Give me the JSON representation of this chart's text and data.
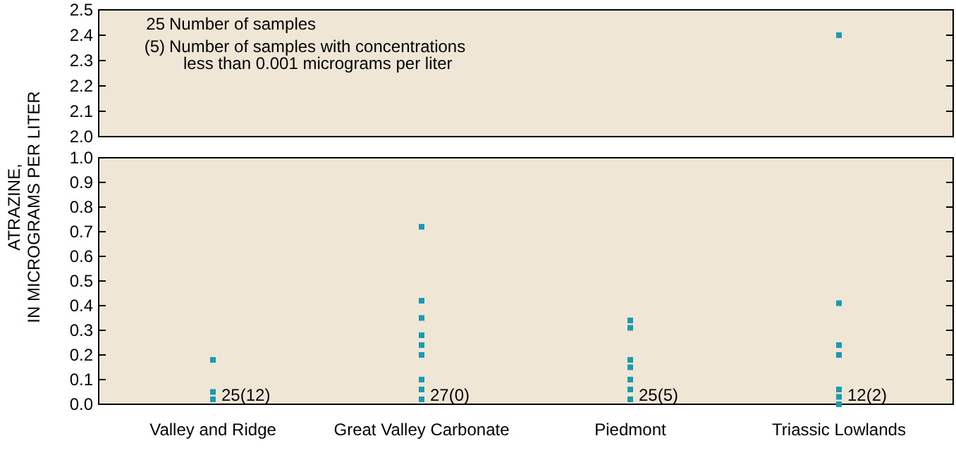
{
  "chart_data": [
    {
      "type": "scatter",
      "categories": [
        "Valley and Ridge",
        "Great Valley Carbonate",
        "Piedmont",
        "Triassic Lowlands"
      ],
      "ylim": [
        2.0,
        2.5
      ],
      "yticks": [
        {
          "value": 2,
          "label": "2.0"
        },
        2.1,
        2.2,
        2.3,
        2.4,
        2.5
      ],
      "tick_labels": "y",
      "marker": "square",
      "series": [
        {
          "color": "#1a9bb0",
          "x": [
            "Triassic Lowlands"
          ],
          "values": [
            2.4
          ]
        }
      ],
      "annotations": [
        "25",
        "Number of samples",
        "(5)",
        "Number of samples with concentrations less than 0.001 micrograms per liter"
      ]
    },
    {
      "type": "scatter",
      "categories": [
        "Valley and Ridge",
        "Great Valley Carbonate",
        "Piedmont",
        "Triassic Lowlands"
      ],
      "ylabel": "ATRAZINE, IN MICROGRAMS PER LITER",
      "ylim": [
        0,
        1.0
      ],
      "yticks": [
        {
          "value": 0,
          "label": "0.0"
        },
        0.1,
        0.2,
        0.3,
        0.4,
        0.5,
        0.6,
        0.7,
        0.8,
        0.9,
        {
          "value": 1,
          "label": "1.0"
        }
      ],
      "marker": "square",
      "series": [
        {
          "color": "#1a9bb0",
          "x": [
            "Valley and Ridge",
            "Valley and Ridge",
            "Valley and Ridge",
            "Great Valley Carbonate",
            "Great Valley Carbonate",
            "Great Valley Carbonate",
            "Great Valley Carbonate",
            "Great Valley Carbonate",
            "Great Valley Carbonate",
            "Great Valley Carbonate",
            "Great Valley Carbonate",
            "Great Valley Carbonate",
            "Piedmont",
            "Piedmont",
            "Piedmont",
            "Piedmont",
            "Piedmont",
            "Piedmont",
            "Piedmont",
            "Triassic Lowlands",
            "Triassic Lowlands",
            "Triassic Lowlands",
            "Triassic Lowlands",
            "Triassic Lowlands",
            "Triassic Lowlands"
          ],
          "values": [
            0.18,
            0.05,
            0.02,
            0.72,
            0.42,
            0.35,
            0.28,
            0.24,
            0.2,
            0.1,
            0.06,
            0.02,
            0.34,
            0.31,
            0.18,
            0.15,
            0.1,
            0.06,
            0.02,
            0.41,
            0.24,
            0.2,
            0.06,
            0.03,
            0
          ]
        }
      ],
      "annotations": [
        {
          "text": "25(12)",
          "x": "Valley and Ridge",
          "y": 0.02
        },
        {
          "text": "27(0)",
          "x": "Great Valley Carbonate",
          "y": 0.02
        },
        {
          "text": "25(5)",
          "x": "Piedmont",
          "y": 0.02
        },
        {
          "text": "12(2)",
          "x": "Triassic Lowlands",
          "y": 0.02
        }
      ]
    }
  ]
}
